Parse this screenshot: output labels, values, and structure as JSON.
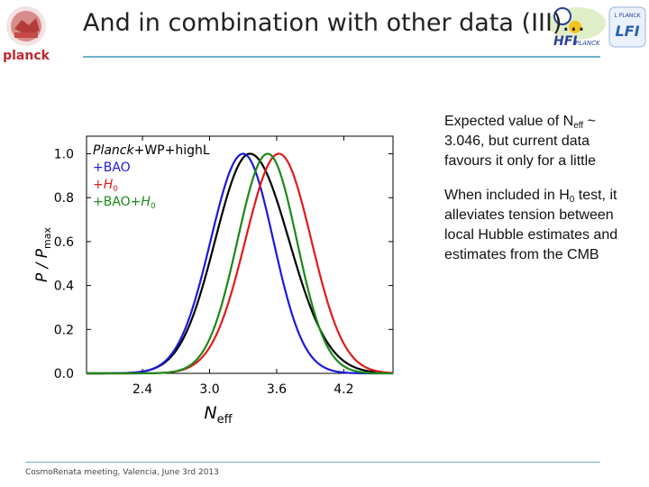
{
  "slide": {
    "title": "And in combination with other data (III)...",
    "footer": "CosmoRenata meeting, Valencia, June 3rd 2013"
  },
  "logos": {
    "left_text": "planck",
    "right_text_1": "HFI",
    "right_text_2": "PLANCK",
    "right_text_3": "L PLANCK",
    "right_text_4": "LFI"
  },
  "bullets": {
    "b1_pre": "Expected value of N",
    "b1_sub": "eff",
    "b1_post": " ~ 3.046, but current data favours it only for a little",
    "b2_pre": "When included in H",
    "b2_sub": "0",
    "b2_post": " test, it alleviates tension between local Hubble estimates and estimates from the CMB"
  },
  "chart_data": {
    "type": "line",
    "xlabel_main": "N",
    "xlabel_sub": "eff",
    "ylabel_main": "P / P",
    "ylabel_sub": "max",
    "xlim": [
      1.9,
      4.64
    ],
    "ylim": [
      0,
      1.08
    ],
    "xticks": [
      2.4,
      3.0,
      3.6,
      4.2
    ],
    "xtick_labels": [
      "2.4",
      "3.0",
      "3.6",
      "4.2"
    ],
    "yticks": [
      0.0,
      0.2,
      0.4,
      0.6,
      0.8,
      1.0
    ],
    "ytick_labels": [
      "0.0",
      "0.2",
      "0.4",
      "0.6",
      "0.8",
      "1.0"
    ],
    "legend_position": "top-left",
    "series": [
      {
        "name": "Planck+WP+highL",
        "legend_html": "<tspan font-style='italic'>Planck</tspan>+WP+highL",
        "color": "#000000",
        "mean": 3.36,
        "sigma_left": 0.31,
        "sigma_right": 0.35
      },
      {
        "name": "+BAO",
        "legend_html": "+BAO",
        "color": "#1a1adb",
        "mean": 3.3,
        "sigma_left": 0.29,
        "sigma_right": 0.27
      },
      {
        "name": "+H0",
        "legend_html": "+<tspan font-style='italic'>H</tspan><tspan font-size='9' dy='3'>0</tspan>",
        "color": "#e01a1a",
        "mean": 3.62,
        "sigma_left": 0.3,
        "sigma_right": 0.29
      },
      {
        "name": "+BAO+H0",
        "legend_html": "+BAO+<tspan font-style='italic'>H</tspan><tspan font-size='9' dy='3'>0</tspan>",
        "color": "#1a8a1a",
        "mean": 3.52,
        "sigma_left": 0.27,
        "sigma_right": 0.26
      }
    ]
  }
}
